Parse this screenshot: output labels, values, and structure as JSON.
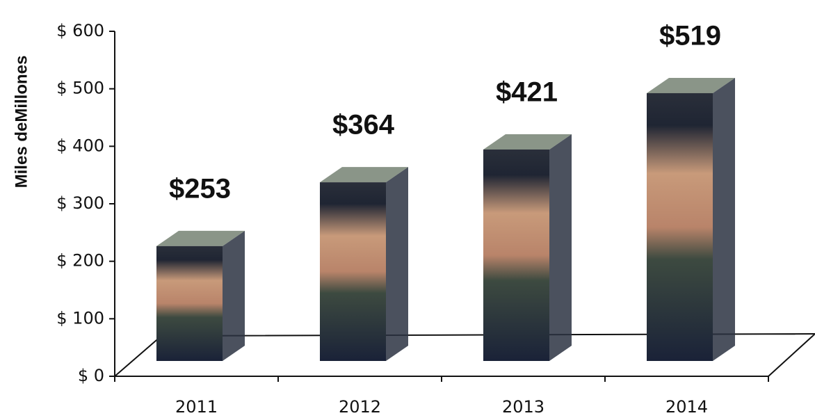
{
  "chart_data": {
    "type": "bar3d",
    "y_label": "Miles deMillones",
    "categories": [
      "2011",
      "2012",
      "2013",
      "2014"
    ],
    "values": [
      253,
      364,
      421,
      519
    ],
    "value_labels": [
      "$253",
      "$364",
      "$421",
      "$519"
    ],
    "ylim": [
      0,
      600
    ],
    "yticks": [
      {
        "value": 0,
        "label": "$ 0"
      },
      {
        "value": 100,
        "label": "$ 100"
      },
      {
        "value": 200,
        "label": "$ 200"
      },
      {
        "value": 300,
        "label": "$ 300"
      },
      {
        "value": 400,
        "label": "$ 400"
      },
      {
        "value": 500,
        "label": "$ 500"
      },
      {
        "value": 600,
        "label": "$ 600"
      }
    ],
    "color": "#1c2a44"
  }
}
